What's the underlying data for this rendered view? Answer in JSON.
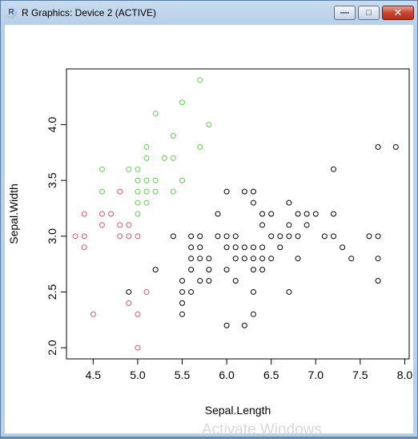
{
  "window": {
    "title": "R Graphics: Device 2 (ACTIVE)",
    "icon_letter": "R",
    "minimize_symbol": "—",
    "maximize_symbol": "□",
    "close_symbol": "✕"
  },
  "watermark": "Activate Windows",
  "chart_data": {
    "type": "scatter",
    "title": "",
    "xlabel": "Sepal.Length",
    "ylabel": "Sepal.Width",
    "xlim": [
      4.2,
      8.05
    ],
    "ylim": [
      1.9,
      4.5
    ],
    "xticks": [
      "4.5",
      "5.0",
      "5.5",
      "6.0",
      "6.5",
      "7.0",
      "7.5",
      "8.0"
    ],
    "yticks": [
      "2.0",
      "2.5",
      "3.0",
      "3.5",
      "4.0"
    ],
    "grid": false,
    "series": [
      {
        "color": "#df536b",
        "points": [
          [
            4.3,
            3.0
          ],
          [
            4.4,
            3.2
          ],
          [
            4.4,
            3.0
          ],
          [
            4.4,
            2.9
          ],
          [
            4.5,
            2.3
          ],
          [
            4.6,
            3.2
          ],
          [
            4.6,
            3.1
          ],
          [
            4.7,
            3.2
          ],
          [
            4.8,
            3.4
          ],
          [
            4.8,
            3.1
          ],
          [
            4.8,
            3.0
          ],
          [
            4.9,
            3.1
          ],
          [
            4.9,
            3.0
          ],
          [
            4.9,
            2.4
          ],
          [
            5.0,
            3.0
          ],
          [
            5.0,
            2.3
          ],
          [
            5.0,
            2.0
          ],
          [
            5.1,
            2.5
          ]
        ]
      },
      {
        "color": "#61d04f",
        "points": [
          [
            4.6,
            3.6
          ],
          [
            4.6,
            3.4
          ],
          [
            4.9,
            3.6
          ],
          [
            5.0,
            3.6
          ],
          [
            5.0,
            3.5
          ],
          [
            5.0,
            3.4
          ],
          [
            5.0,
            3.3
          ],
          [
            5.0,
            3.2
          ],
          [
            5.1,
            3.8
          ],
          [
            5.1,
            3.7
          ],
          [
            5.1,
            3.5
          ],
          [
            5.1,
            3.4
          ],
          [
            5.1,
            3.3
          ],
          [
            5.2,
            4.1
          ],
          [
            5.2,
            3.5
          ],
          [
            5.2,
            3.4
          ],
          [
            5.3,
            3.7
          ],
          [
            5.4,
            3.9
          ],
          [
            5.4,
            3.7
          ],
          [
            5.4,
            3.4
          ],
          [
            5.5,
            4.2
          ],
          [
            5.5,
            3.5
          ],
          [
            5.7,
            4.4
          ],
          [
            5.7,
            3.8
          ],
          [
            5.8,
            4.0
          ]
        ]
      },
      {
        "color": "#000000",
        "points": [
          [
            4.9,
            2.5
          ],
          [
            5.2,
            2.7
          ],
          [
            5.4,
            3.0
          ],
          [
            5.5,
            2.6
          ],
          [
            5.5,
            2.5
          ],
          [
            5.5,
            2.4
          ],
          [
            5.5,
            2.3
          ],
          [
            5.6,
            3.0
          ],
          [
            5.6,
            2.9
          ],
          [
            5.6,
            2.8
          ],
          [
            5.6,
            2.7
          ],
          [
            5.6,
            2.5
          ],
          [
            5.7,
            3.0
          ],
          [
            5.7,
            2.9
          ],
          [
            5.7,
            2.8
          ],
          [
            5.7,
            2.6
          ],
          [
            5.8,
            2.8
          ],
          [
            5.8,
            2.7
          ],
          [
            5.8,
            2.6
          ],
          [
            5.9,
            3.2
          ],
          [
            5.9,
            3.0
          ],
          [
            6.0,
            3.4
          ],
          [
            6.0,
            3.0
          ],
          [
            6.0,
            2.9
          ],
          [
            6.0,
            2.7
          ],
          [
            6.0,
            2.2
          ],
          [
            6.1,
            3.0
          ],
          [
            6.1,
            2.9
          ],
          [
            6.1,
            2.8
          ],
          [
            6.1,
            2.6
          ],
          [
            6.2,
            3.4
          ],
          [
            6.2,
            2.9
          ],
          [
            6.2,
            2.8
          ],
          [
            6.2,
            2.2
          ],
          [
            6.3,
            3.4
          ],
          [
            6.3,
            3.3
          ],
          [
            6.3,
            2.9
          ],
          [
            6.3,
            2.8
          ],
          [
            6.3,
            2.7
          ],
          [
            6.3,
            2.5
          ],
          [
            6.3,
            2.3
          ],
          [
            6.4,
            3.2
          ],
          [
            6.4,
            3.1
          ],
          [
            6.4,
            2.9
          ],
          [
            6.4,
            2.8
          ],
          [
            6.4,
            2.7
          ],
          [
            6.5,
            3.2
          ],
          [
            6.5,
            3.0
          ],
          [
            6.5,
            2.8
          ],
          [
            6.6,
            3.0
          ],
          [
            6.6,
            2.9
          ],
          [
            6.7,
            3.3
          ],
          [
            6.7,
            3.1
          ],
          [
            6.7,
            3.0
          ],
          [
            6.7,
            2.5
          ],
          [
            6.8,
            3.2
          ],
          [
            6.8,
            3.0
          ],
          [
            6.8,
            2.8
          ],
          [
            6.9,
            3.2
          ],
          [
            6.9,
            3.1
          ],
          [
            7.0,
            3.2
          ],
          [
            7.1,
            3.0
          ],
          [
            7.2,
            3.6
          ],
          [
            7.2,
            3.2
          ],
          [
            7.2,
            3.0
          ],
          [
            7.3,
            2.9
          ],
          [
            7.4,
            2.8
          ],
          [
            7.6,
            3.0
          ],
          [
            7.7,
            3.8
          ],
          [
            7.7,
            3.0
          ],
          [
            7.7,
            2.8
          ],
          [
            7.7,
            2.6
          ],
          [
            7.9,
            3.8
          ]
        ]
      }
    ]
  }
}
